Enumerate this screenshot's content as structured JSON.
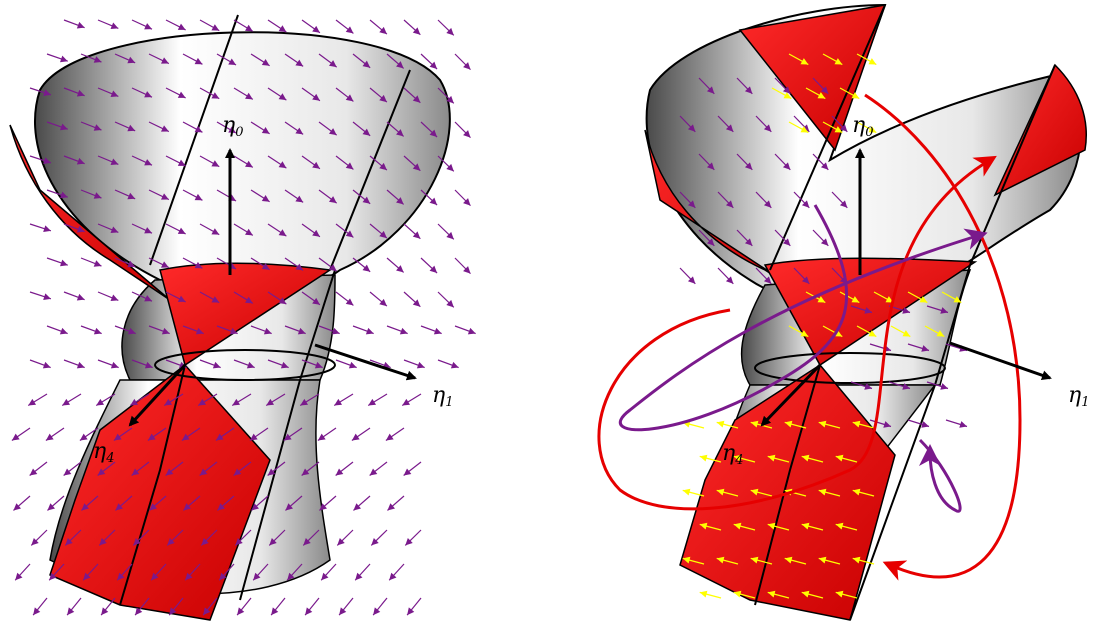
{
  "figure": {
    "panels": [
      {
        "id": "left",
        "axes": {
          "eta0": "η",
          "eta0_sub": "0",
          "eta1": "η",
          "eta1_sub": "1",
          "eta4": "η",
          "eta4_sub": "4"
        },
        "vector_field_color": "#7a1a8c",
        "arrow_field": "purple"
      },
      {
        "id": "right",
        "axes": {
          "eta0": "η",
          "eta0_sub": "0",
          "eta1": "η",
          "eta1_sub": "1",
          "eta4": "η",
          "eta4_sub": "4"
        },
        "vector_field_color": "#7a1a8c",
        "region_field_color": "#ffff00",
        "orbit_colors": [
          "#e60000",
          "#7a1a8c"
        ]
      }
    ],
    "colors": {
      "region": "#ff0000",
      "surface_light": "#ffffff",
      "surface_dark": "#5a5a5a",
      "outline": "#000000"
    }
  }
}
